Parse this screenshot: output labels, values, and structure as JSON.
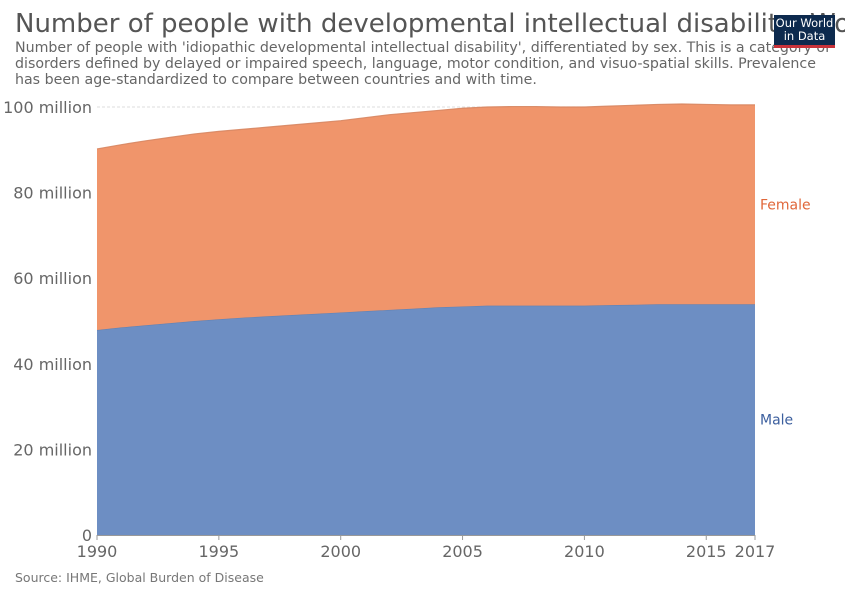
{
  "header": {
    "title": "Number of people with developmental intellectual disability, World",
    "subtitle": "Number of people with 'idiopathic developmental intellectual disability', differentiated by sex. This is a category of disorders defined by delayed or impaired speech, language, motor condition, and visuo-spatial skills. Prevalence has been age-standardized to compare between countries and with time."
  },
  "logo": {
    "line1": "Our World",
    "line2": "in Data",
    "bg_color": "#0d2a4e",
    "accent_color": "#c8323a"
  },
  "footer": {
    "source": "Source: IHME, Global Burden of Disease"
  },
  "chart_data": {
    "type": "area",
    "stacked": true,
    "x": [
      1990,
      1991,
      1992,
      1993,
      1994,
      1995,
      1996,
      1997,
      1998,
      1999,
      2000,
      2001,
      2002,
      2003,
      2004,
      2005,
      2006,
      2007,
      2008,
      2009,
      2010,
      2011,
      2012,
      2013,
      2014,
      2015,
      2016,
      2017
    ],
    "series": [
      {
        "name": "Male",
        "color": "#6d8ec3",
        "label_color": "#3c5f9e",
        "values": [
          47.9,
          48.5,
          49.0,
          49.5,
          50.0,
          50.4,
          50.8,
          51.1,
          51.4,
          51.7,
          52.0,
          52.3,
          52.6,
          52.9,
          53.2,
          53.4,
          53.6,
          53.6,
          53.6,
          53.6,
          53.6,
          53.7,
          53.8,
          53.9,
          53.9,
          53.9,
          53.9,
          53.9
        ]
      },
      {
        "name": "Female",
        "color": "#f0956b",
        "label_color": "#e0673a",
        "values": [
          42.3,
          42.7,
          43.1,
          43.4,
          43.7,
          43.9,
          44.0,
          44.2,
          44.4,
          44.6,
          44.8,
          45.2,
          45.6,
          45.8,
          46.0,
          46.3,
          46.4,
          46.5,
          46.5,
          46.4,
          46.4,
          46.5,
          46.6,
          46.7,
          46.8,
          46.7,
          46.6,
          46.6
        ]
      }
    ],
    "ylim": [
      0,
      100
    ],
    "y_ticks": [
      {
        "value": 0,
        "label": "0"
      },
      {
        "value": 20,
        "label": "20 million"
      },
      {
        "value": 40,
        "label": "40 million"
      },
      {
        "value": 60,
        "label": "60 million"
      },
      {
        "value": 80,
        "label": "80 million"
      },
      {
        "value": 100,
        "label": "100 million"
      }
    ],
    "x_ticks": [
      {
        "value": 1990,
        "label": "1990"
      },
      {
        "value": 1995,
        "label": "1995"
      },
      {
        "value": 2000,
        "label": "2000"
      },
      {
        "value": 2005,
        "label": "2005"
      },
      {
        "value": 2010,
        "label": "2010"
      },
      {
        "value": 2015,
        "label": "2015"
      },
      {
        "value": 2017,
        "label": "2017"
      }
    ],
    "grid": true,
    "legend": "right-inline"
  }
}
